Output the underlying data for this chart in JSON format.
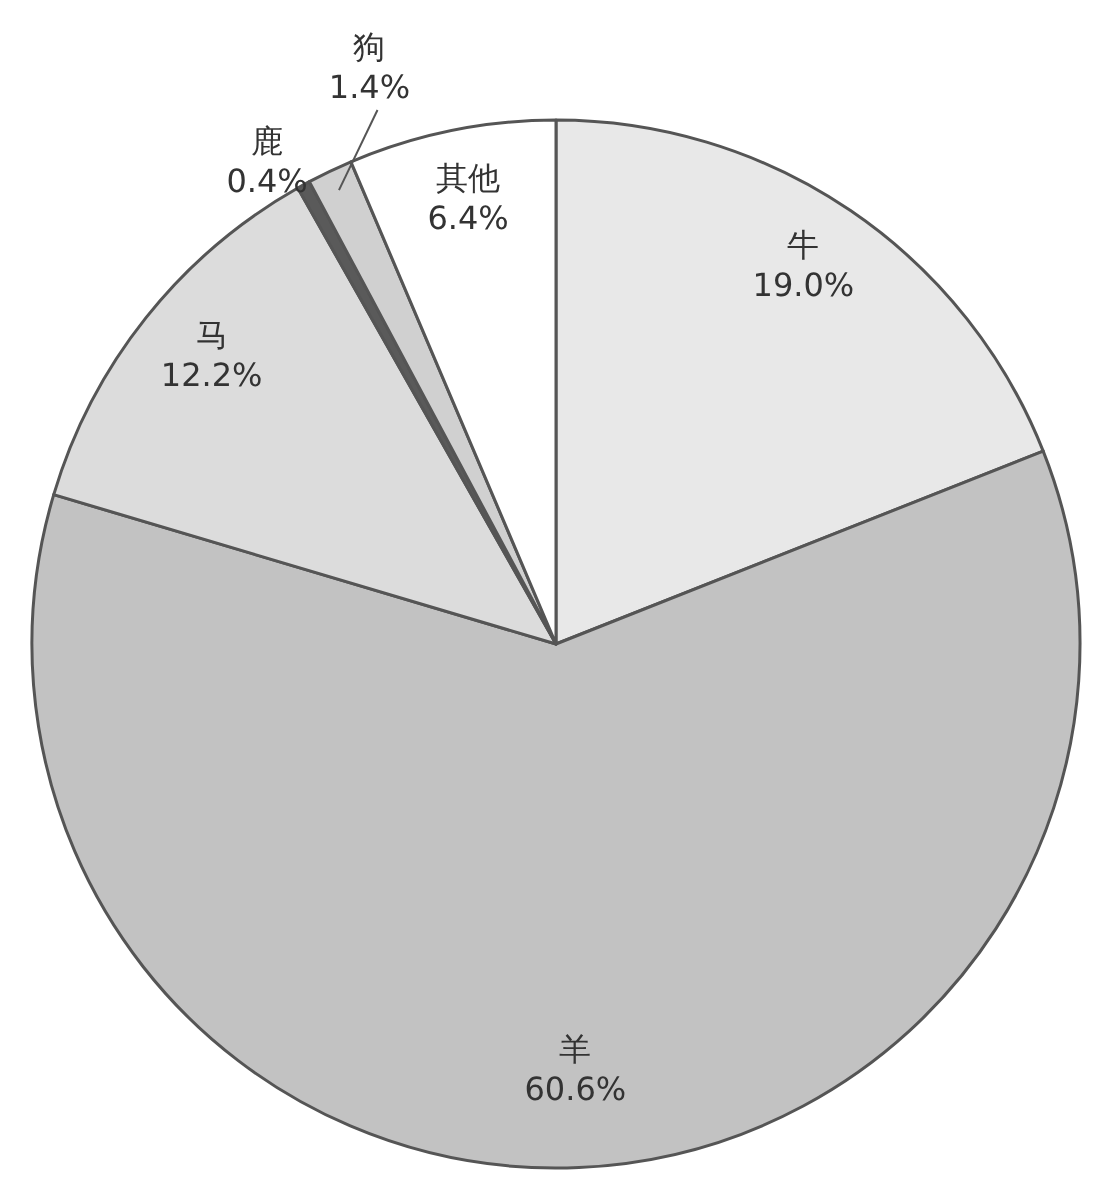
{
  "chart_data": {
    "type": "pie",
    "categories": [
      "牛",
      "羊",
      "马",
      "鹿",
      "狗",
      "其他"
    ],
    "values": [
      19.0,
      60.6,
      12.2,
      0.4,
      1.4,
      6.4
    ],
    "colors": [
      "#e8e8e8",
      "#c2c2c2",
      "#dcdcdc",
      "#5a5a5a",
      "#d0d0d0",
      "#ffffff"
    ],
    "value_labels": [
      "19.0%",
      "60.6%",
      "12.2%",
      "0.4%",
      "1.4%",
      "6.4%"
    ]
  }
}
